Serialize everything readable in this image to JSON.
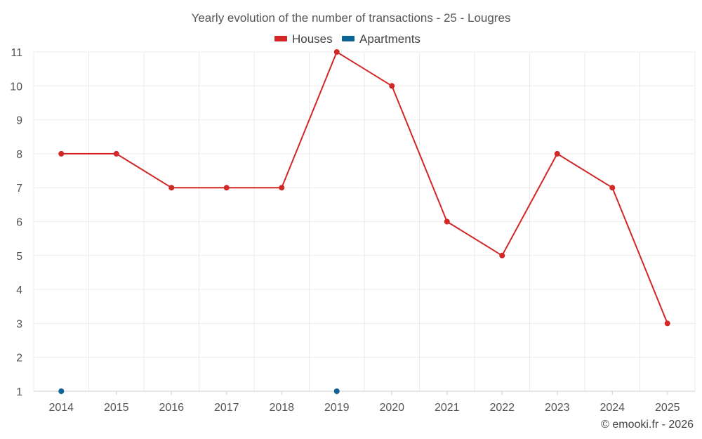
{
  "chart_data": {
    "type": "line",
    "title": "Yearly evolution of the number of transactions - 25 - Lougres",
    "categories": [
      "2014",
      "2015",
      "2016",
      "2017",
      "2018",
      "2019",
      "2020",
      "2021",
      "2022",
      "2023",
      "2024",
      "2025"
    ],
    "series": [
      {
        "name": "Houses",
        "color": "#d32626",
        "values": [
          8,
          8,
          7,
          7,
          7,
          11,
          10,
          6,
          5,
          8,
          7,
          3
        ],
        "line": true
      },
      {
        "name": "Apartments",
        "color": "#0e6397",
        "values": [
          1,
          null,
          null,
          null,
          null,
          1,
          null,
          null,
          null,
          null,
          null,
          null
        ],
        "line": false
      }
    ],
    "y_ticks": [
      "1",
      "2",
      "3",
      "4",
      "5",
      "6",
      "7",
      "8",
      "9",
      "10",
      "11"
    ],
    "ylim": [
      1,
      11
    ],
    "grid": true,
    "legend_position": "top-center",
    "credit": "© emooki.fr - 2026"
  }
}
